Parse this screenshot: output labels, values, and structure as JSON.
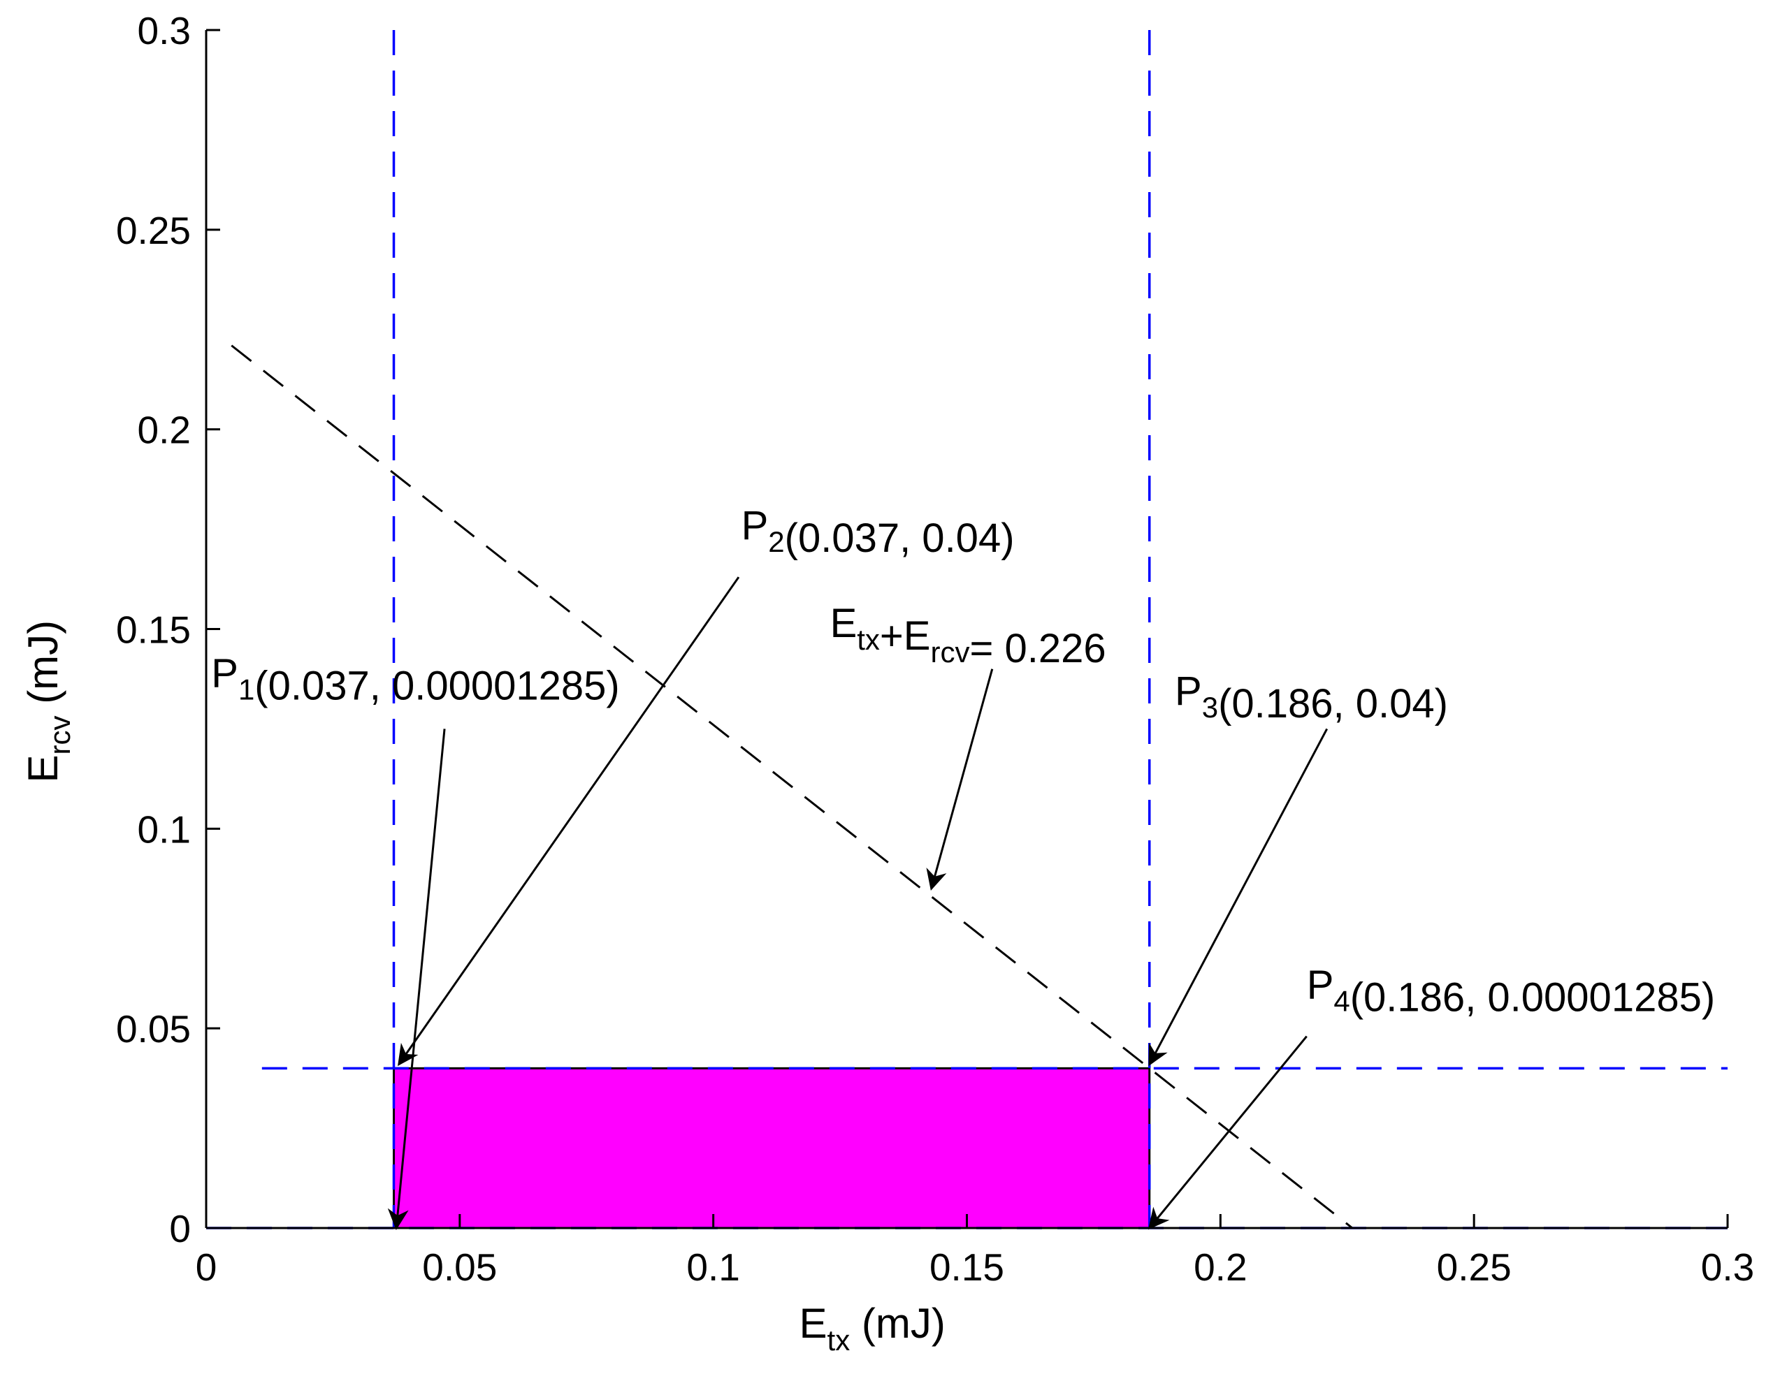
{
  "chart_data": {
    "type": "line",
    "title": "",
    "xlabel": {
      "main": "E",
      "sub": "tx",
      "unit": " (mJ)"
    },
    "ylabel": {
      "main": "E",
      "sub": "rcv",
      "unit": " (mJ)"
    },
    "xlim": [
      0,
      0.3
    ],
    "ylim": [
      0,
      0.3
    ],
    "x_ticks": [
      0,
      0.05,
      0.1,
      0.15,
      0.2,
      0.25,
      0.3
    ],
    "x_tick_labels": [
      "0",
      "0.05",
      "0.1",
      "0.15",
      "0.2",
      "0.25",
      "0.3"
    ],
    "y_ticks": [
      0,
      0.05,
      0.1,
      0.15,
      0.2,
      0.25,
      0.3
    ],
    "y_tick_labels": [
      "0",
      "0.05",
      "0.1",
      "0.15",
      "0.2",
      "0.25",
      "0.3"
    ],
    "grid": false,
    "colors": {
      "constraint_lines": "#0000ff",
      "sum_line": "#000000",
      "feasible_region": "#ff00ff",
      "axes": "#000000"
    },
    "vertical_lines": [
      0.037,
      0.186
    ],
    "horizontal_lines": [
      0.04
    ],
    "sum_line": {
      "sum": 0.226,
      "x": [
        0.005,
        0.226
      ],
      "y": [
        0.221,
        0.0
      ]
    },
    "region": {
      "x": [
        0.037,
        0.186
      ],
      "y": [
        0.0,
        0.04
      ]
    },
    "annotations": [
      {
        "id": "P1",
        "main": "P",
        "sub": "1",
        "text": "(0.037, 0.00001285)",
        "label_x": 0.001,
        "label_y": 0.1355,
        "arrow_from": [
          0.047,
          0.125
        ],
        "arrow_to": [
          0.0375,
          0.0
        ]
      },
      {
        "id": "P2",
        "main": "P",
        "sub": "2",
        "text": "(0.037, 0.04)",
        "label_x": 0.1055,
        "label_y": 0.1725,
        "arrow_from": [
          0.105,
          0.163
        ],
        "arrow_to": [
          0.038,
          0.041
        ]
      },
      {
        "id": "P3",
        "main": "P",
        "sub": "3",
        "text": "(0.186, 0.04)",
        "label_x": 0.191,
        "label_y": 0.131,
        "arrow_from": [
          0.221,
          0.125
        ],
        "arrow_to": [
          0.186,
          0.041
        ]
      },
      {
        "id": "P4",
        "main": "P",
        "sub": "4",
        "text": "(0.186, 0.00001285)",
        "label_x": 0.217,
        "label_y": 0.0575,
        "arrow_from": [
          0.217,
          0.048
        ],
        "arrow_to": [
          0.186,
          0.0
        ]
      },
      {
        "id": "SUM",
        "label_x": 0.123,
        "label_y": 0.148,
        "arrow_from": [
          0.155,
          0.14
        ],
        "arrow_to": [
          0.143,
          0.085
        ]
      }
    ],
    "sum_label": {
      "parts": [
        {
          "main": "E",
          "sub": "tx"
        },
        {
          "main": "+E",
          "sub": "rcv"
        },
        {
          "main": "= 0.226",
          "sub": ""
        }
      ]
    }
  }
}
